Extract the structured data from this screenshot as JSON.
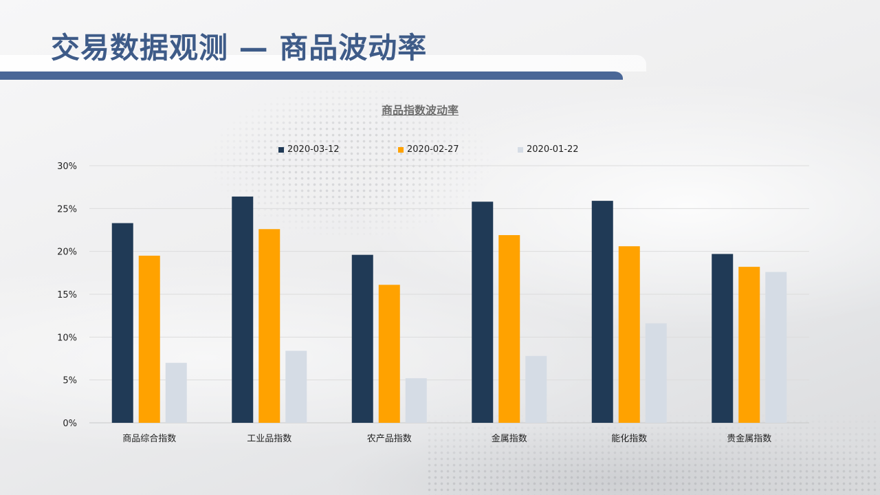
{
  "header": {
    "title": "交易数据观测 — 商品波动率"
  },
  "colors": {
    "title": "#3e5b88",
    "bar_accent": "#4a6797"
  },
  "chart_data": {
    "type": "bar",
    "title": "商品指数波动率",
    "xlabel": "",
    "ylabel": "",
    "ylim": [
      0,
      30
    ],
    "yticks": [
      "0%",
      "5%",
      "10%",
      "15%",
      "20%",
      "25%",
      "30%"
    ],
    "grid": true,
    "legend_position": "top",
    "categories": [
      "商品综合指数",
      "工业品指数",
      "农产品指数",
      "金属指数",
      "能化指数",
      "贵金属指数"
    ],
    "series": [
      {
        "name": "2020-03-12",
        "color": "#203a56",
        "values": [
          23.3,
          26.4,
          19.6,
          25.8,
          25.9,
          19.7
        ]
      },
      {
        "name": "2020-02-27",
        "color": "#ffa200",
        "values": [
          19.5,
          22.6,
          16.1,
          21.9,
          20.6,
          18.2
        ]
      },
      {
        "name": "2020-01-22",
        "color": "#d5dce5",
        "values": [
          7.0,
          8.4,
          5.2,
          7.8,
          11.6,
          17.6
        ]
      }
    ]
  }
}
